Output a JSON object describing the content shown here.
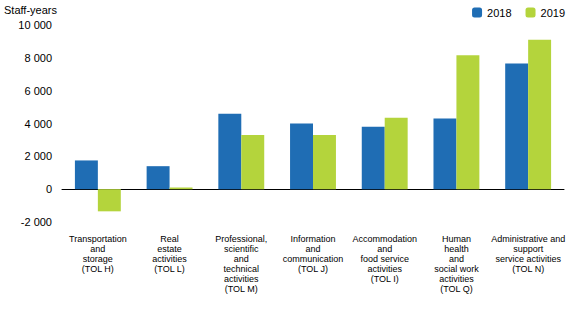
{
  "chart_data": {
    "type": "bar",
    "y_label": "Staff-years",
    "categories": [
      "Transportation\nand\nstorage\n(TOL H)",
      "Real\nestate\nactivities\n(TOL L)",
      "Professional,\nscientific\nand\ntechnical\nactivities\n(TOL M)",
      "Information\nand\ncommunication\n(TOL J)",
      "Accommodation\nand\nfood service\nactivities\n(TOL I)",
      "Human\nhealth\nand\nsocial work\nactivities\n(TOL Q)",
      "Administrative and\nsupport\nservice activities\n(TOL N)"
    ],
    "series": [
      {
        "name": "2018",
        "color": "#1f6db4",
        "values": [
          1750,
          1400,
          4600,
          4000,
          3800,
          4300,
          7650
        ]
      },
      {
        "name": "2019",
        "color": "#b4d43c",
        "values": [
          -1350,
          100,
          3300,
          3300,
          4350,
          8150,
          9100
        ]
      }
    ],
    "ylim": [
      -2000,
      10000
    ],
    "yticks": [
      {
        "value": -2000,
        "label": "-2 000"
      },
      0,
      {
        "value": 2000,
        "label": "2 000"
      },
      {
        "value": 4000,
        "label": "4 000"
      },
      {
        "value": 6000,
        "label": "6 000"
      },
      {
        "value": 8000,
        "label": "8 000"
      },
      {
        "value": 10000,
        "label": "10 000"
      }
    ],
    "grid": false,
    "legend": "top-right"
  }
}
